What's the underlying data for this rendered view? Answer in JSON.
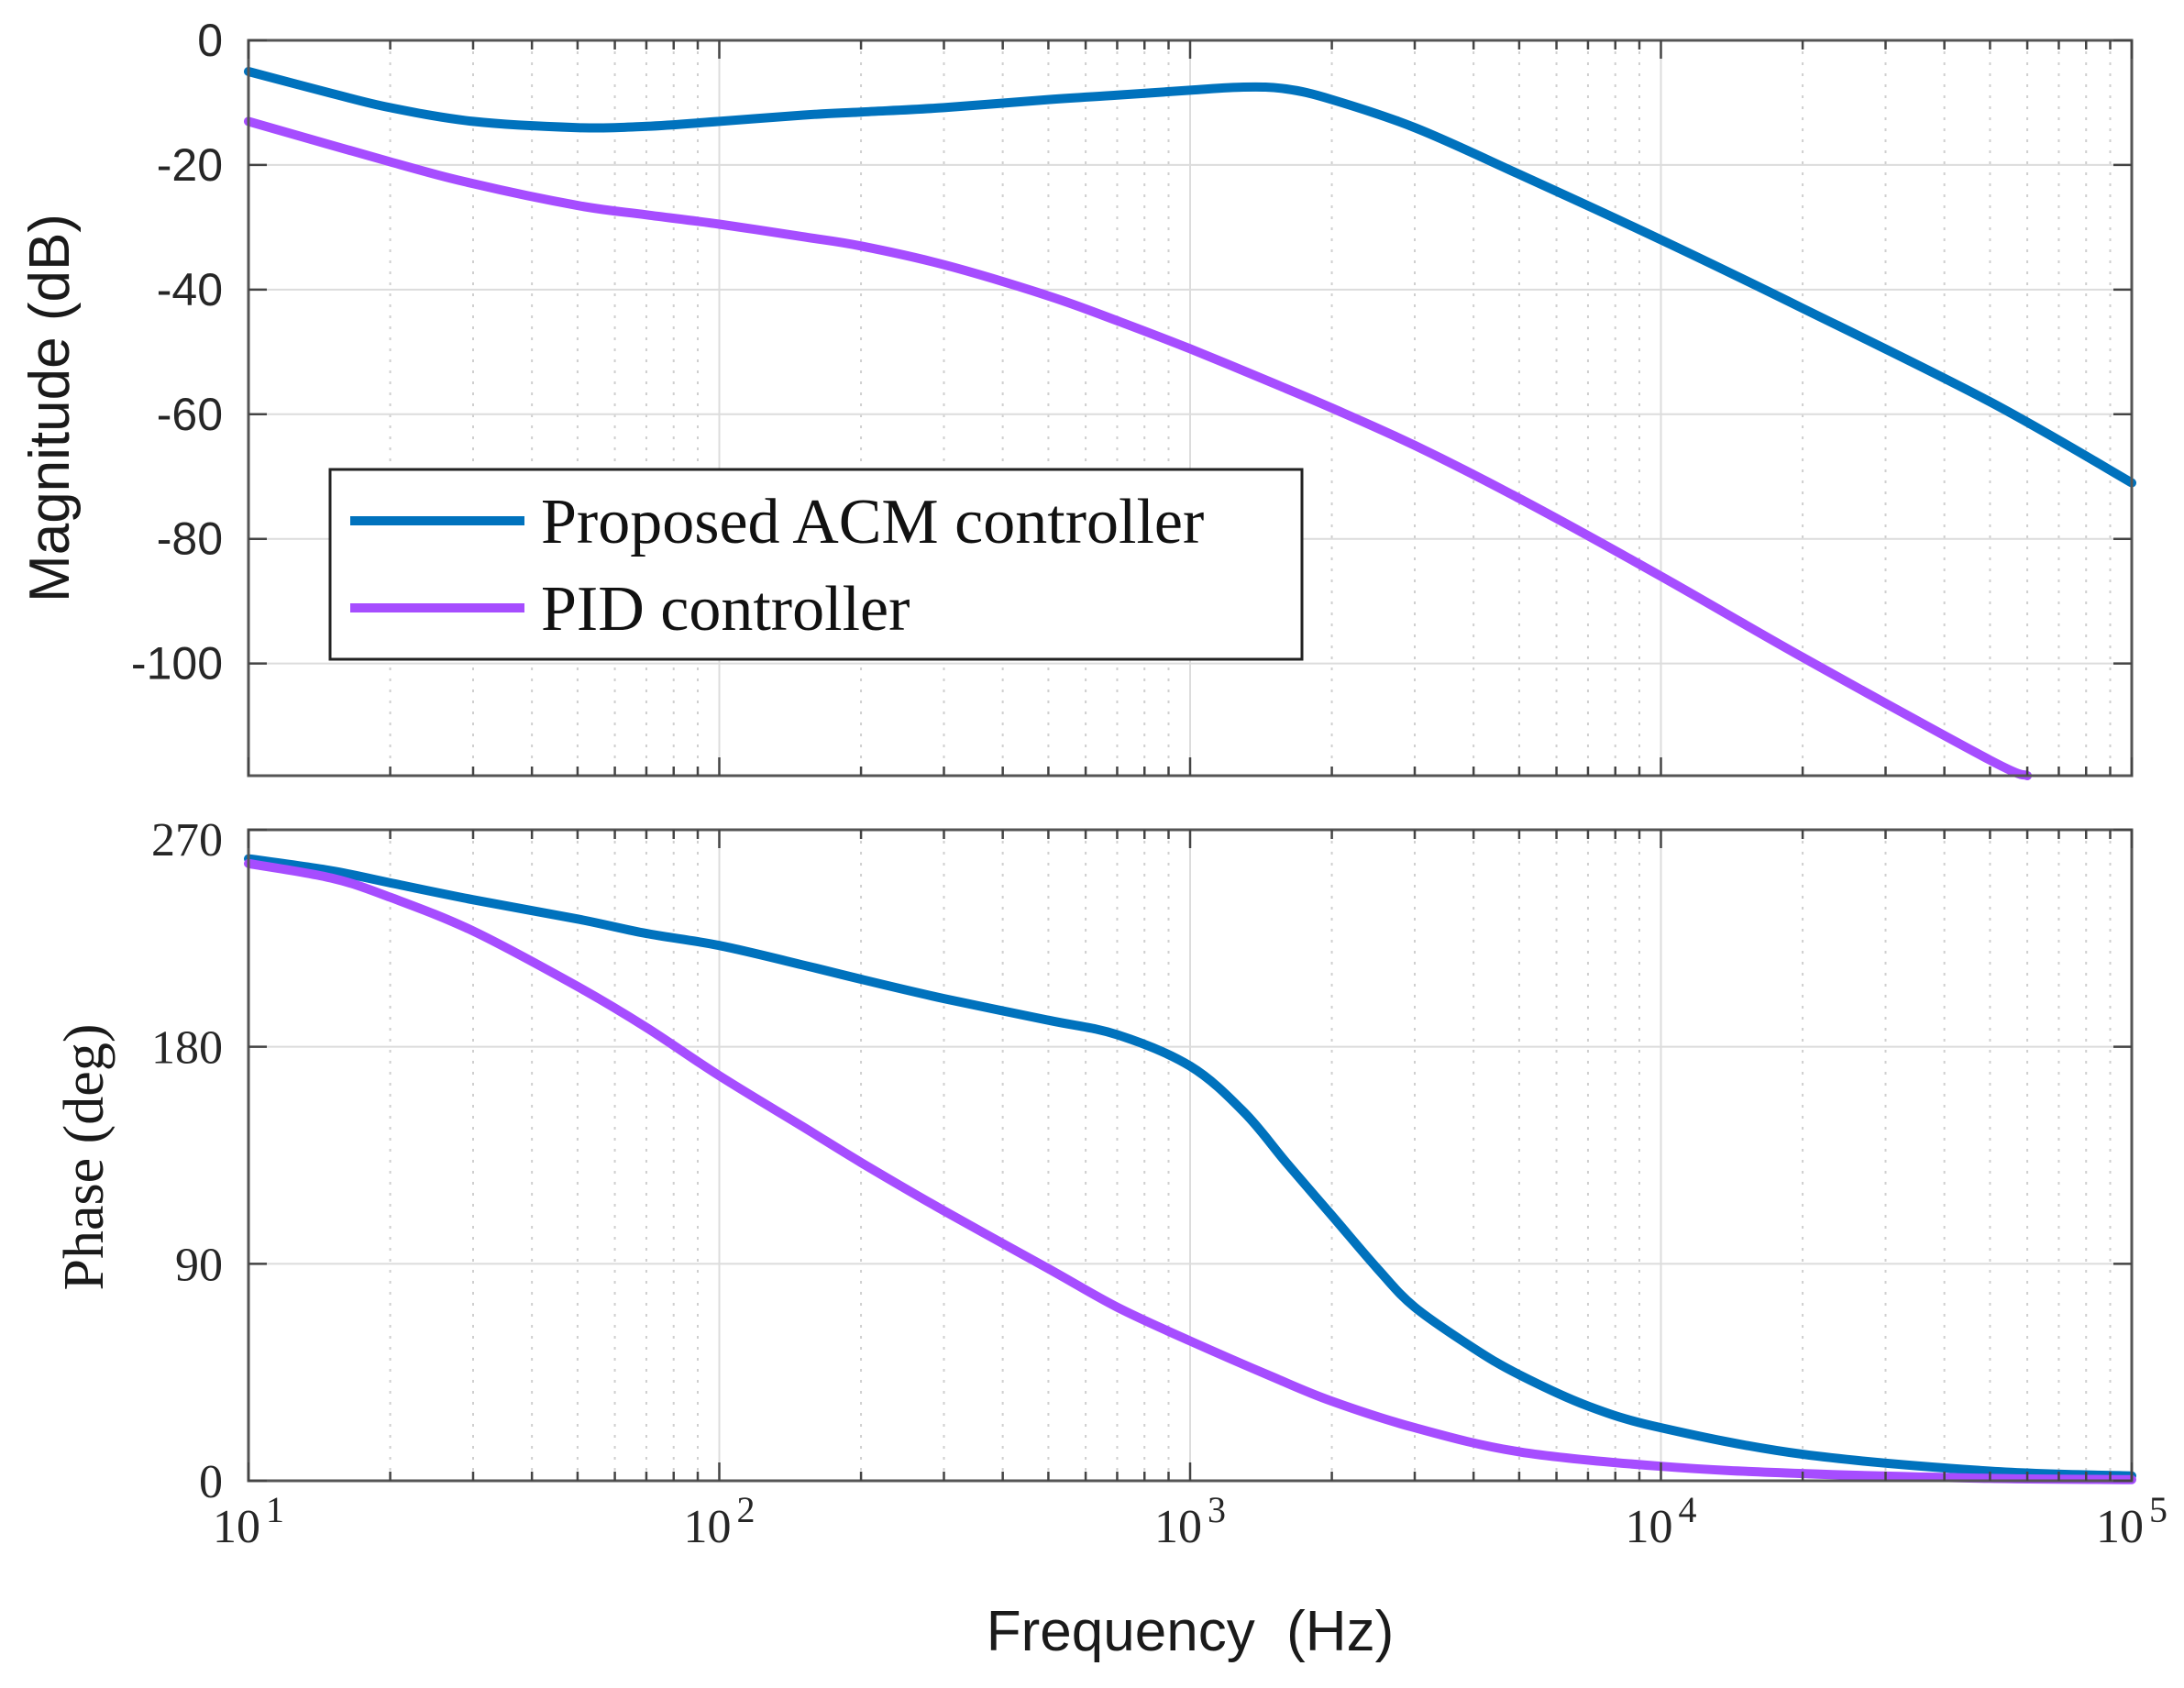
{
  "chart_data": [
    {
      "type": "line",
      "panel": "magnitude",
      "xscale": "log",
      "xlim": [
        10,
        100000
      ],
      "ylim": [
        -118,
        0
      ],
      "ylabel": "Magnitude (dB)",
      "yticks": [
        0,
        -20,
        -40,
        -60,
        -80,
        -100
      ],
      "ytick_labels": [
        "0",
        "-20",
        "-40",
        "-60",
        "-80",
        "-100"
      ],
      "grid": true,
      "legend_position": "middle-left",
      "series": [
        {
          "name": "Proposed ACM controller",
          "color": "#0072BD",
          "x": [
            10,
            15,
            20,
            30,
            50,
            70,
            100,
            150,
            200,
            300,
            500,
            700,
            1000,
            1300,
            1600,
            2000,
            3000,
            5000,
            10000,
            20000,
            50000,
            100000
          ],
          "y": [
            -5,
            -8.5,
            -10.8,
            -13,
            -14,
            -13.8,
            -13,
            -12,
            -11.5,
            -10.8,
            -9.5,
            -8.8,
            -8,
            -7.5,
            -7.8,
            -9.5,
            -14,
            -21.5,
            -32,
            -43,
            -58,
            -71
          ]
        },
        {
          "name": "PID controller",
          "color": "#A64DFF",
          "x": [
            10,
            20,
            30,
            50,
            70,
            100,
            150,
            200,
            300,
            500,
            700,
            1000,
            1500,
            2000,
            3000,
            5000,
            10000,
            20000,
            50000,
            60000
          ],
          "y": [
            -13,
            -19.5,
            -23,
            -26.5,
            -28,
            -29.5,
            -31.5,
            -33,
            -36,
            -41,
            -45,
            -49.5,
            -55,
            -59,
            -65,
            -73.5,
            -86,
            -99,
            -115.5,
            -118
          ]
        }
      ]
    },
    {
      "type": "line",
      "panel": "phase",
      "xscale": "log",
      "xlim": [
        10,
        100000
      ],
      "ylim": [
        0,
        270
      ],
      "ylabel": "Phase (deg)",
      "xlabel": "Frequency  (Hz)",
      "yticks": [
        0,
        90,
        180,
        270
      ],
      "ytick_labels": [
        "0",
        "90",
        "180",
        "270"
      ],
      "xticks": [
        10,
        100,
        1000,
        10000,
        100000
      ],
      "xtick_bases": [
        "10",
        "10",
        "10",
        "10",
        "10"
      ],
      "xtick_exponents": [
        "1",
        "2",
        "3",
        "4",
        "5"
      ],
      "grid": true,
      "series": [
        {
          "name": "Proposed ACM controller",
          "color": "#0072BD",
          "x": [
            10,
            15,
            20,
            30,
            50,
            70,
            100,
            150,
            200,
            300,
            500,
            700,
            1000,
            1300,
            1600,
            2000,
            2500,
            3000,
            4000,
            5000,
            7000,
            10000,
            20000,
            50000,
            100000
          ],
          "y": [
            258,
            253,
            248,
            241,
            233,
            227,
            222,
            214,
            208,
            200,
            191,
            185,
            172,
            153,
            132,
            110,
            88,
            72,
            55,
            44,
            31,
            22,
            11,
            4,
            2
          ]
        },
        {
          "name": "PID controller",
          "color": "#A64DFF",
          "x": [
            10,
            15,
            20,
            30,
            50,
            70,
            100,
            150,
            200,
            300,
            500,
            700,
            1000,
            1500,
            2000,
            3000,
            5000,
            10000,
            20000,
            50000,
            100000
          ],
          "y": [
            256,
            250,
            242,
            228,
            205,
            188,
            168,
            147,
            132,
            112,
            88,
            72,
            58,
            43,
            33,
            22,
            12,
            6,
            3,
            1,
            0.5
          ]
        }
      ]
    }
  ]
}
